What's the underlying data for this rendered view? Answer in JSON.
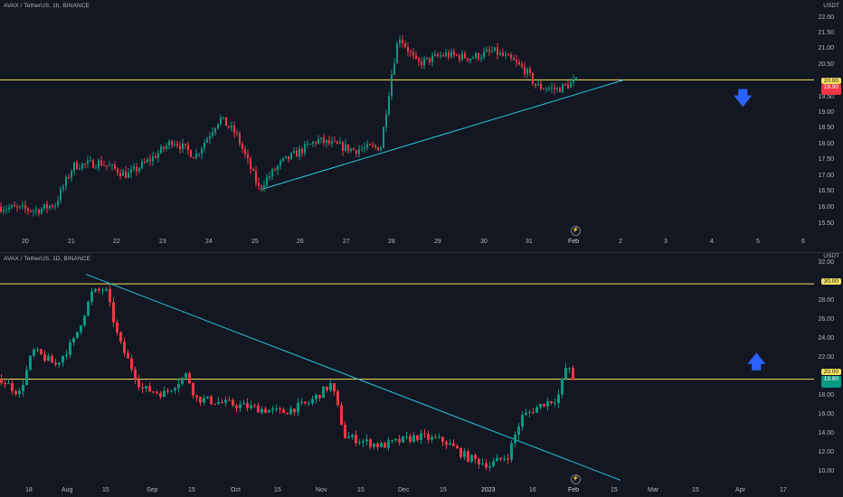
{
  "panes": [
    {
      "id": "1h",
      "symbol": "AVAX / TetherUS, 1h, BINANCE",
      "currency": "USDT",
      "price_axis": [
        "22.00",
        "21.50",
        "21.00",
        "20.50",
        "20.00",
        "19.50",
        "19.00",
        "18.50",
        "18.00",
        "17.50",
        "17.00",
        "16.50",
        "16.00",
        "15.50"
      ],
      "time_axis": [
        "20",
        "21",
        "22",
        "23",
        "24",
        "25",
        "26",
        "27",
        "28",
        "29",
        "30",
        "31",
        "Feb",
        "2",
        "3",
        "4",
        "5",
        "6"
      ],
      "level_label": "20.00",
      "price_label": "19.90",
      "arrow": "down",
      "arrow_color": "#2962ff"
    },
    {
      "id": "1d",
      "symbol": "AVAX / TetherUS, 1D, BINANCE",
      "currency": "USDT",
      "price_axis": [
        "32.00",
        "30.00",
        "28.00",
        "26.00",
        "24.00",
        "22.00",
        "20.00",
        "18.00",
        "16.00",
        "14.00",
        "12.00",
        "10.00"
      ],
      "time_axis": [
        "18",
        "Aug",
        "15",
        "Sep",
        "15",
        "Oct",
        "15",
        "Nov",
        "15",
        "Dec",
        "15",
        "2023",
        "16",
        "Feb",
        "15",
        "Mar",
        "15",
        "Apr",
        "17"
      ],
      "level_upper": "30.00",
      "level_lower": "20.00",
      "price_label": "19.90",
      "arrow": "up",
      "arrow_color": "#2962ff"
    }
  ],
  "colors": {
    "up": "#089981",
    "down": "#f23645",
    "level": "#f7e25c",
    "trend": "#26c6da",
    "bg": "#131722"
  },
  "icons": [
    "lightning-icon",
    "arrow-down-icon",
    "arrow-up-icon"
  ]
}
